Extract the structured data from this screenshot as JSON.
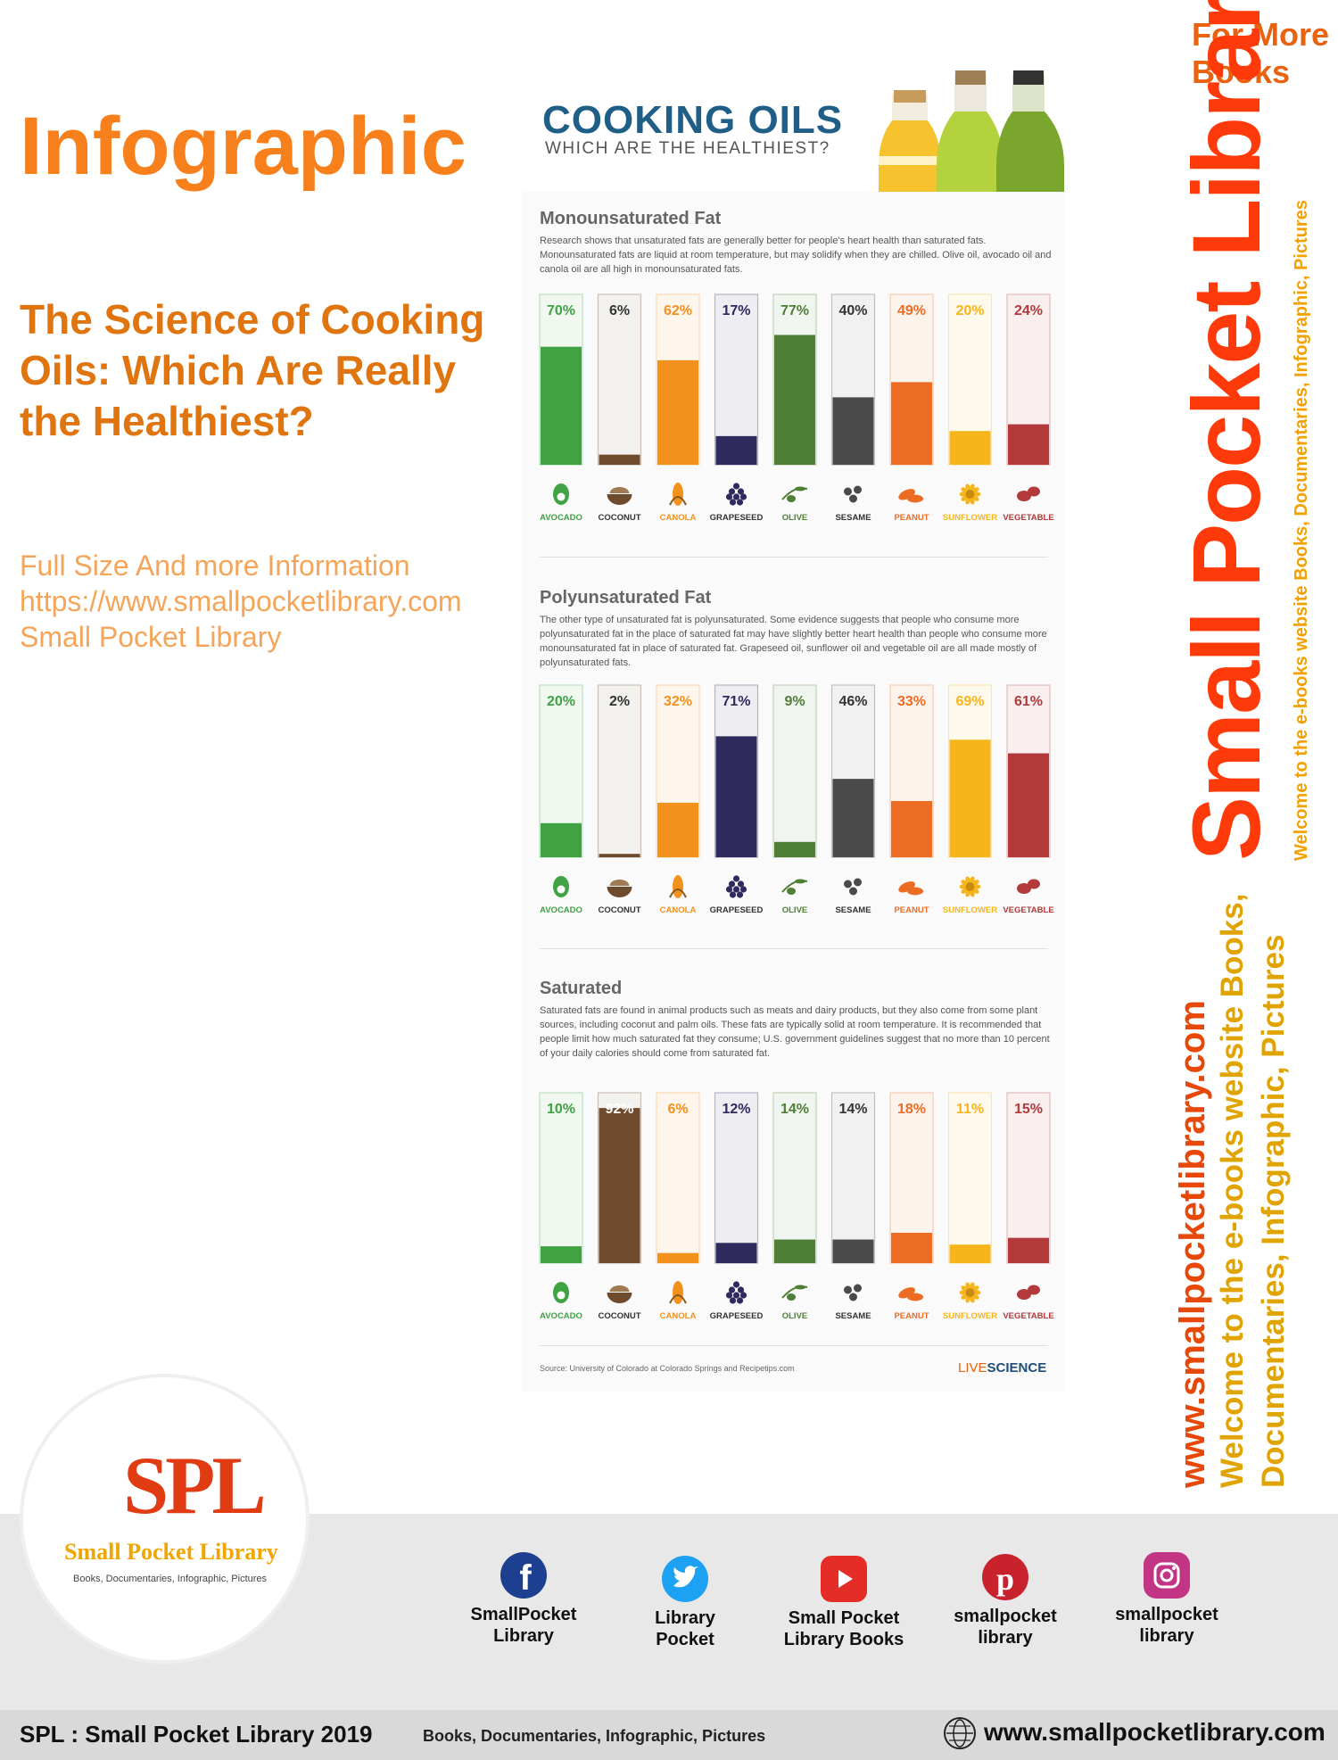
{
  "page": {
    "title": "Infographic",
    "subtitle": "The Science of Cooking Oils: Which Are Really the Healthiest?",
    "info_lines": [
      "Full Size And more Information",
      "https://www.smallpocketlibrary.com",
      "Small Pocket Library"
    ]
  },
  "branding": {
    "for_more_1": "For More",
    "for_more_2": "Books",
    "big_name": "Small Pocket Library",
    "small_tagline": "Welcome to the e-books website Books, Documentaries, Infographic, Pictures",
    "url": "www.smallpocketlibrary.com",
    "tagline_1": "Welcome to the e-books website Books,",
    "tagline_2": "Documentaries, Infographic, Pictures"
  },
  "infographic": {
    "title": "COOKING OILS",
    "subtitle": "WHICH ARE THE HEALTHIEST?",
    "source": "Source: University of Colorado at Colorado Springs and Recipetips.com",
    "publisher_1": "LIVE",
    "publisher_2": "SCIENCE"
  },
  "colors": {
    "avocado": "#3fa243",
    "coconut": "#6e4b2d",
    "canola": "#f3911d",
    "grapeseed": "#2f2a5e",
    "olive": "#4f7e37",
    "sesame": "#4a4a4a",
    "peanut": "#ec6c24",
    "sunflower": "#f6b51b",
    "vegetable": "#b23a3b"
  },
  "chart_data": [
    {
      "type": "bar",
      "title": "Monounsaturated Fat",
      "description": "Research shows that unsaturated fats are generally better for people's heart health than saturated fats. Monounsaturated fats are liquid at room temperature, but may solidify when they are chilled. Olive oil, avocado oil and canola oil are all high in monounsaturated fats.",
      "categories": [
        "AVOCADO",
        "COCONUT",
        "CANOLA",
        "GRAPESEED",
        "OLIVE",
        "SESAME",
        "PEANUT",
        "SUNFLOWER",
        "VEGETABLE"
      ],
      "values": [
        70,
        6,
        62,
        17,
        77,
        40,
        49,
        20,
        24
      ],
      "labels": [
        "70%",
        "6%",
        "62%",
        "17%",
        "77%",
        "40%",
        "49%",
        "20%",
        "24%"
      ],
      "ylim": [
        0,
        100
      ]
    },
    {
      "type": "bar",
      "title": "Polyunsaturated Fat",
      "description": "The other type of unsaturated fat is polyunsaturated. Some evidence suggests that people who consume more polyunsaturated fat in the place of saturated fat may have slightly better heart health than people who consume more monounsaturated fat in place of saturated fat. Grapeseed oil, sunflower oil and vegetable oil are all made mostly of polyunsaturated fats.",
      "categories": [
        "AVOCADO",
        "COCONUT",
        "CANOLA",
        "GRAPESEED",
        "OLIVE",
        "SESAME",
        "PEANUT",
        "SUNFLOWER",
        "VEGETABLE"
      ],
      "values": [
        20,
        2,
        32,
        71,
        9,
        46,
        33,
        69,
        61
      ],
      "labels": [
        "20%",
        "2%",
        "32%",
        "71%",
        "9%",
        "46%",
        "33%",
        "69%",
        "61%"
      ],
      "ylim": [
        0,
        100
      ]
    },
    {
      "type": "bar",
      "title": "Saturated",
      "description": "Saturated fats are found in animal products such as meats and dairy products, but they also come from some plant sources, including coconut and palm oils. These fats are typically solid at room temperature. It is recommended that people limit how much saturated fat they consume; U.S. government guidelines suggest that no more than 10 percent of your daily calories should come from saturated fat.",
      "categories": [
        "AVOCADO",
        "COCONUT",
        "CANOLA",
        "GRAPESEED",
        "OLIVE",
        "SESAME",
        "PEANUT",
        "SUNFLOWER",
        "VEGETABLE"
      ],
      "values": [
        10,
        92,
        6,
        12,
        14,
        14,
        18,
        11,
        15
      ],
      "labels": [
        "10%",
        "92%",
        "6%",
        "12%",
        "14%",
        "14%",
        "18%",
        "11%",
        "15%"
      ],
      "ylim": [
        0,
        100
      ]
    }
  ],
  "logo": {
    "letters": "SPL",
    "name": "Small Pocket Library",
    "tagline": "Books, Documentaries, Infographic, Pictures"
  },
  "social": [
    {
      "icon": "facebook-icon",
      "line1": "SmallPocket",
      "line2": "Library",
      "color": "#1d3f8f"
    },
    {
      "icon": "twitter-icon",
      "line1": "Library",
      "line2": "Pocket",
      "color": "#1da1f2"
    },
    {
      "icon": "youtube-icon",
      "line1": "Small Pocket",
      "line2": "Library Books",
      "color": "#e52d27"
    },
    {
      "icon": "pinterest-icon",
      "line1": "smallpocket",
      "line2": "library",
      "color": "#c8232c"
    },
    {
      "icon": "instagram-icon",
      "line1": "smallpocket",
      "line2": "library",
      "color": "#c13584"
    }
  ],
  "footer": {
    "left": "SPL : Small Pocket Library  2019",
    "middle": "Books, Documentaries, Infographic, Pictures",
    "right": "www.smallpocketlibrary.com"
  }
}
